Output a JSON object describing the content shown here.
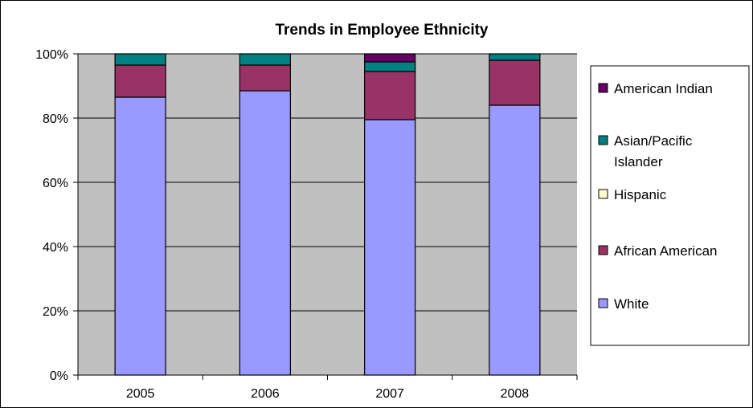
{
  "chart_data": {
    "type": "bar",
    "stacked": true,
    "percent": true,
    "title": "Trends in Employee Ethnicity",
    "categories": [
      "2005",
      "2006",
      "2007",
      "2008"
    ],
    "yticks": [
      "0%",
      "20%",
      "40%",
      "60%",
      "80%",
      "100%"
    ],
    "ylim": [
      0,
      100
    ],
    "grid": true,
    "legend_position": "right",
    "series": [
      {
        "name": "White",
        "color": "#9999ff",
        "values": [
          86.5,
          88.5,
          79.5,
          84
        ]
      },
      {
        "name": "African American",
        "color": "#993366",
        "values": [
          10,
          8,
          15,
          14
        ]
      },
      {
        "name": "Hispanic",
        "color": "#ffffcc",
        "values": [
          0,
          0,
          0,
          0
        ]
      },
      {
        "name": "Asian/Pacific Islander",
        "color": "#008080",
        "values": [
          3.5,
          3.5,
          3,
          2
        ]
      },
      {
        "name": "American Indian",
        "color": "#660066",
        "values": [
          0,
          0,
          2.5,
          0
        ]
      }
    ],
    "legend_entries": [
      {
        "lines": [
          "American Indian"
        ],
        "color": "#660066"
      },
      {
        "lines": [
          "Asian/Pacific",
          "Islander"
        ],
        "color": "#008080"
      },
      {
        "lines": [
          "Hispanic"
        ],
        "color": "#ffffcc"
      },
      {
        "lines": [
          "African American"
        ],
        "color": "#993366"
      },
      {
        "lines": [
          "White"
        ],
        "color": "#9999ff"
      }
    ],
    "plot_background": "#c0c0c0"
  }
}
